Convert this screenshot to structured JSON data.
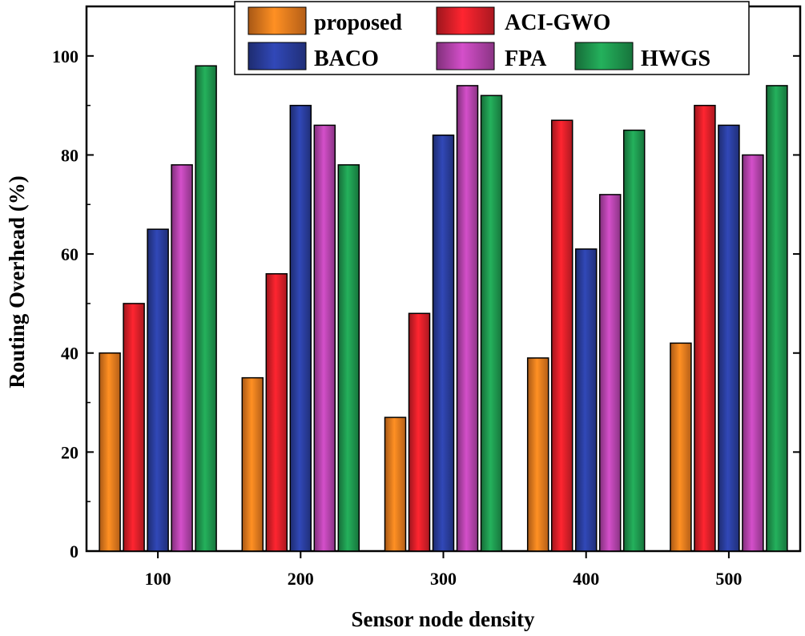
{
  "chart_data": {
    "type": "bar",
    "title": "",
    "xlabel": "Sensor node density",
    "ylabel": "Routing Overhead (%)",
    "ylim": [
      0,
      110
    ],
    "yticks": [
      "0",
      "20",
      "40",
      "60",
      "80",
      "100"
    ],
    "categories": [
      "100",
      "200",
      "300",
      "400",
      "500"
    ],
    "series": [
      {
        "name": "proposed",
        "color": "#f07d1e",
        "values": [
          40,
          35,
          27,
          39,
          42
        ]
      },
      {
        "name": "ACI-GWO",
        "color": "#e2202a",
        "values": [
          50,
          56,
          48,
          87,
          90
        ]
      },
      {
        "name": "BACO",
        "color": "#2b3fa0",
        "values": [
          65,
          90,
          84,
          61,
          86
        ]
      },
      {
        "name": "FPA",
        "color": "#b845b0",
        "values": [
          78,
          86,
          94,
          72,
          80
        ]
      },
      {
        "name": "HWGS",
        "color": "#1f9a50",
        "values": [
          98,
          78,
          92,
          85,
          94
        ]
      }
    ],
    "legend_position": "top-center",
    "grid": false
  }
}
